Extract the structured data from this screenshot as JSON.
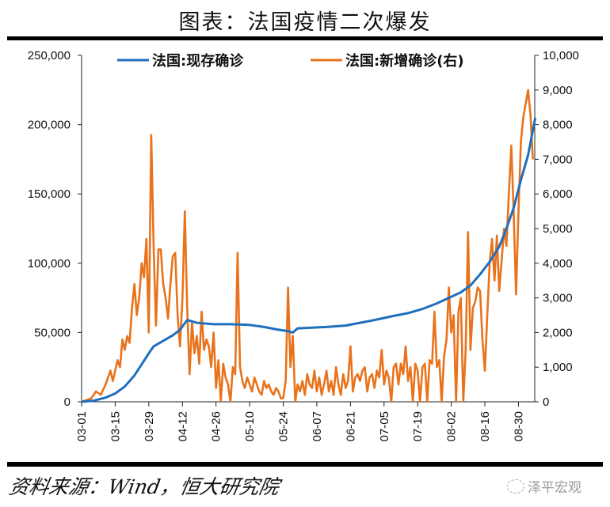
{
  "title": "图表：法国疫情二次爆发",
  "source": "资料来源：Wind，恒大研究院",
  "watermark": "泽平宏观",
  "chart_data": {
    "type": "line",
    "title": "图表：法国疫情二次爆发",
    "x_start_date": "03-01",
    "x_unit": "days since 03-01",
    "x_range": [
      0,
      189
    ],
    "x_tick_labels": [
      "03-01",
      "03-15",
      "03-29",
      "04-12",
      "04-26",
      "05-10",
      "05-24",
      "06-07",
      "06-21",
      "07-05",
      "07-19",
      "08-02",
      "08-16",
      "08-30"
    ],
    "y_left": {
      "range": [
        0,
        250000
      ],
      "ticks": [
        "0",
        "50,000",
        "100,000",
        "150,000",
        "200,000",
        "250,000"
      ]
    },
    "y_right": {
      "range": [
        0,
        10000
      ],
      "ticks": [
        "0",
        "1,000",
        "2,000",
        "3,000",
        "4,000",
        "5,000",
        "6,000",
        "7,000",
        "8,000",
        "9,000",
        "10,000"
      ]
    },
    "legend_position": "top",
    "series": [
      {
        "name": "法国:现存确诊",
        "axis": "left",
        "color": "#1f6fbf",
        "points": [
          [
            0,
            0
          ],
          [
            5,
            800
          ],
          [
            10,
            3000
          ],
          [
            14,
            6000
          ],
          [
            18,
            11000
          ],
          [
            22,
            19000
          ],
          [
            25,
            27000
          ],
          [
            28,
            35000
          ],
          [
            30,
            40000
          ],
          [
            34,
            44000
          ],
          [
            38,
            48000
          ],
          [
            41,
            52000
          ],
          [
            44,
            59000
          ],
          [
            48,
            57000
          ],
          [
            55,
            56000
          ],
          [
            62,
            56000
          ],
          [
            70,
            55500
          ],
          [
            76,
            54000
          ],
          [
            82,
            52000
          ],
          [
            86,
            51000
          ],
          [
            88,
            50000
          ],
          [
            90,
            53000
          ],
          [
            96,
            53500
          ],
          [
            102,
            54000
          ],
          [
            110,
            55000
          ],
          [
            116,
            57000
          ],
          [
            122,
            59000
          ],
          [
            130,
            62000
          ],
          [
            136,
            64000
          ],
          [
            142,
            67000
          ],
          [
            148,
            71000
          ],
          [
            153,
            75000
          ],
          [
            158,
            79000
          ],
          [
            162,
            84000
          ],
          [
            166,
            92000
          ],
          [
            170,
            101000
          ],
          [
            174,
            112000
          ],
          [
            177,
            125000
          ],
          [
            180,
            140000
          ],
          [
            183,
            160000
          ],
          [
            186,
            178000
          ],
          [
            189,
            205000
          ]
        ]
      },
      {
        "name": "法国:新增确诊(右)",
        "axis": "right",
        "color": "#e8731c",
        "points": [
          [
            0,
            0
          ],
          [
            2,
            50
          ],
          [
            4,
            100
          ],
          [
            6,
            300
          ],
          [
            8,
            200
          ],
          [
            10,
            500
          ],
          [
            12,
            900
          ],
          [
            13,
            600
          ],
          [
            15,
            1200
          ],
          [
            16,
            1000
          ],
          [
            17,
            1800
          ],
          [
            18,
            1500
          ],
          [
            19,
            1900
          ],
          [
            20,
            1700
          ],
          [
            21,
            2700
          ],
          [
            22,
            3400
          ],
          [
            23,
            2500
          ],
          [
            24,
            3000
          ],
          [
            25,
            4000
          ],
          [
            26,
            3600
          ],
          [
            27,
            4700
          ],
          [
            28,
            2000
          ],
          [
            29,
            7700
          ],
          [
            30,
            4500
          ],
          [
            31,
            2200
          ],
          [
            32,
            4400
          ],
          [
            33,
            4400
          ],
          [
            34,
            3400
          ],
          [
            35,
            3000
          ],
          [
            36,
            2400
          ],
          [
            37,
            3400
          ],
          [
            38,
            4200
          ],
          [
            39,
            4300
          ],
          [
            40,
            2500
          ],
          [
            41,
            1600
          ],
          [
            42,
            3000
          ],
          [
            43,
            5500
          ],
          [
            44,
            2700
          ],
          [
            45,
            800
          ],
          [
            46,
            2300
          ],
          [
            47,
            1400
          ],
          [
            48,
            1900
          ],
          [
            49,
            1100
          ],
          [
            50,
            2600
          ],
          [
            51,
            1500
          ],
          [
            52,
            1800
          ],
          [
            53,
            1600
          ],
          [
            54,
            1000
          ],
          [
            55,
            2000
          ],
          [
            56,
            400
          ],
          [
            57,
            1200
          ],
          [
            58,
            0
          ],
          [
            59,
            1100
          ],
          [
            60,
            700
          ],
          [
            61,
            500
          ],
          [
            62,
            0
          ],
          [
            63,
            1000
          ],
          [
            64,
            800
          ],
          [
            65,
            4300
          ],
          [
            66,
            1000
          ],
          [
            67,
            600
          ],
          [
            68,
            400
          ],
          [
            69,
            700
          ],
          [
            70,
            500
          ],
          [
            71,
            300
          ],
          [
            72,
            700
          ],
          [
            73,
            500
          ],
          [
            74,
            300
          ],
          [
            75,
            200
          ],
          [
            76,
            600
          ],
          [
            77,
            400
          ],
          [
            78,
            500
          ],
          [
            79,
            300
          ],
          [
            80,
            200
          ],
          [
            81,
            400
          ],
          [
            82,
            300
          ],
          [
            83,
            100
          ],
          [
            84,
            100
          ],
          [
            85,
            600
          ],
          [
            86,
            3300
          ],
          [
            87,
            1000
          ],
          [
            88,
            1900
          ],
          [
            89,
            0
          ],
          [
            90,
            500
          ],
          [
            91,
            300
          ],
          [
            92,
            600
          ],
          [
            93,
            200
          ],
          [
            94,
            800
          ],
          [
            95,
            500
          ],
          [
            96,
            400
          ],
          [
            97,
            900
          ],
          [
            98,
            300
          ],
          [
            99,
            700
          ],
          [
            100,
            200
          ],
          [
            101,
            500
          ],
          [
            102,
            900
          ],
          [
            103,
            300
          ],
          [
            104,
            600
          ],
          [
            105,
            200
          ],
          [
            106,
            1000
          ],
          [
            107,
            500
          ],
          [
            108,
            200
          ],
          [
            109,
            800
          ],
          [
            110,
            400
          ],
          [
            111,
            600
          ],
          [
            112,
            1600
          ],
          [
            113,
            300
          ],
          [
            114,
            700
          ],
          [
            115,
            800
          ],
          [
            116,
            600
          ],
          [
            117,
            900
          ],
          [
            118,
            1000
          ],
          [
            119,
            300
          ],
          [
            120,
            700
          ],
          [
            121,
            800
          ],
          [
            122,
            400
          ],
          [
            123,
            900
          ],
          [
            124,
            700
          ],
          [
            125,
            1500
          ],
          [
            126,
            500
          ],
          [
            127,
            900
          ],
          [
            128,
            700
          ],
          [
            129,
            0
          ],
          [
            130,
            1000
          ],
          [
            131,
            1100
          ],
          [
            132,
            500
          ],
          [
            133,
            1100
          ],
          [
            134,
            800
          ],
          [
            135,
            1600
          ],
          [
            136,
            600
          ],
          [
            137,
            1000
          ],
          [
            138,
            0
          ],
          [
            139,
            1100
          ],
          [
            140,
            900
          ],
          [
            141,
            0
          ],
          [
            142,
            1000
          ],
          [
            143,
            1100
          ],
          [
            144,
            0
          ],
          [
            145,
            1200
          ],
          [
            146,
            1100
          ],
          [
            147,
            2600
          ],
          [
            148,
            1000
          ],
          [
            149,
            1200
          ],
          [
            150,
            0
          ],
          [
            151,
            1300
          ],
          [
            152,
            1800
          ],
          [
            153,
            3300
          ],
          [
            154,
            2000
          ],
          [
            155,
            2500
          ],
          [
            156,
            0
          ],
          [
            157,
            2600
          ],
          [
            158,
            3000
          ],
          [
            159,
            0
          ],
          [
            160,
            1500
          ],
          [
            161,
            4900
          ],
          [
            162,
            1500
          ],
          [
            163,
            2700
          ],
          [
            164,
            2900
          ],
          [
            165,
            3300
          ],
          [
            166,
            3200
          ],
          [
            167,
            1800
          ],
          [
            168,
            900
          ],
          [
            169,
            2500
          ],
          [
            170,
            4000
          ],
          [
            171,
            4700
          ],
          [
            172,
            3500
          ],
          [
            173,
            4800
          ],
          [
            174,
            3200
          ],
          [
            175,
            4100
          ],
          [
            176,
            5000
          ],
          [
            177,
            4500
          ],
          [
            178,
            6000
          ],
          [
            179,
            7400
          ],
          [
            180,
            5500
          ],
          [
            181,
            3100
          ],
          [
            182,
            5500
          ],
          [
            183,
            7500
          ],
          [
            184,
            8200
          ],
          [
            185,
            8600
          ],
          [
            186,
            9000
          ],
          [
            187,
            8300
          ],
          [
            188,
            7000
          ]
        ]
      }
    ]
  }
}
